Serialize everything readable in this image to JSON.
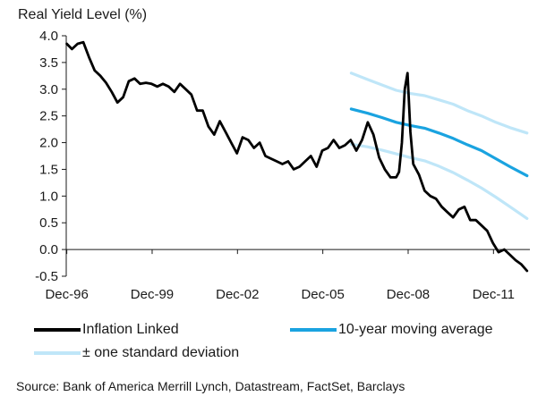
{
  "chart_data": {
    "type": "line",
    "title": "Real Yield Level (%)",
    "xlabel": "",
    "ylabel": "",
    "x_range": [
      1996.9,
      2013.2
    ],
    "ylim": [
      -0.5,
      4.0
    ],
    "y_ticks": [
      -0.5,
      0.0,
      0.5,
      1.0,
      1.5,
      2.0,
      2.5,
      3.0,
      3.5,
      4.0
    ],
    "y_tick_labels": [
      "-0.5",
      "0.0",
      "0.5",
      "1.0",
      "1.5",
      "2.0",
      "2.5",
      "3.0",
      "3.5",
      "4.0"
    ],
    "x_ticks": [
      1996.92,
      1999.92,
      2002.92,
      2005.92,
      2008.92,
      2011.92
    ],
    "x_tick_labels": [
      "Dec-96",
      "Dec-99",
      "Dec-02",
      "Dec-05",
      "Dec-08",
      "Dec-11"
    ],
    "grid": false,
    "legend_position": "bottom",
    "series": [
      {
        "name": "Inflation Linked",
        "color": "#000000",
        "x": [
          1996.92,
          1997.1,
          1997.3,
          1997.5,
          1997.7,
          1997.9,
          1998.1,
          1998.3,
          1998.5,
          1998.7,
          1998.9,
          1999.1,
          1999.3,
          1999.5,
          1999.7,
          1999.9,
          2000.1,
          2000.3,
          2000.5,
          2000.7,
          2000.9,
          2001.1,
          2001.3,
          2001.5,
          2001.7,
          2001.9,
          2002.1,
          2002.3,
          2002.5,
          2002.7,
          2002.9,
          2003.1,
          2003.3,
          2003.5,
          2003.7,
          2003.9,
          2004.1,
          2004.3,
          2004.5,
          2004.7,
          2004.9,
          2005.1,
          2005.3,
          2005.5,
          2005.7,
          2005.9,
          2006.1,
          2006.3,
          2006.5,
          2006.7,
          2006.9,
          2007.1,
          2007.3,
          2007.5,
          2007.7,
          2007.9,
          2008.1,
          2008.3,
          2008.5,
          2008.6,
          2008.7,
          2008.8,
          2008.9,
          2009.0,
          2009.1,
          2009.3,
          2009.5,
          2009.7,
          2009.9,
          2010.1,
          2010.3,
          2010.5,
          2010.7,
          2010.9,
          2011.1,
          2011.3,
          2011.5,
          2011.7,
          2011.9,
          2012.1,
          2012.3,
          2012.5,
          2012.7,
          2012.9,
          2013.1
        ],
        "values": [
          3.85,
          3.75,
          3.85,
          3.88,
          3.6,
          3.35,
          3.25,
          3.12,
          2.95,
          2.75,
          2.85,
          3.15,
          3.2,
          3.1,
          3.12,
          3.1,
          3.05,
          3.1,
          3.05,
          2.95,
          3.1,
          3.0,
          2.9,
          2.6,
          2.6,
          2.3,
          2.15,
          2.4,
          2.2,
          2.0,
          1.8,
          2.1,
          2.05,
          1.9,
          2.0,
          1.75,
          1.7,
          1.65,
          1.6,
          1.65,
          1.5,
          1.55,
          1.65,
          1.75,
          1.55,
          1.85,
          1.9,
          2.05,
          1.9,
          1.95,
          2.05,
          1.85,
          2.05,
          2.38,
          2.15,
          1.72,
          1.5,
          1.35,
          1.35,
          1.45,
          2.0,
          3.0,
          3.3,
          2.2,
          1.6,
          1.4,
          1.1,
          1.0,
          0.95,
          0.8,
          0.7,
          0.6,
          0.75,
          0.8,
          0.55,
          0.55,
          0.45,
          0.35,
          0.12,
          -0.05,
          0.0,
          -0.1,
          -0.2,
          -0.28,
          -0.4
        ]
      },
      {
        "name": "10-year moving average",
        "color": "#1aa3e0",
        "x": [
          2006.92,
          2007.5,
          2008.0,
          2008.5,
          2009.0,
          2009.5,
          2010.0,
          2010.5,
          2011.0,
          2011.5,
          2012.0,
          2012.5,
          2013.1
        ],
        "values": [
          2.63,
          2.55,
          2.47,
          2.38,
          2.32,
          2.27,
          2.18,
          2.08,
          1.96,
          1.85,
          1.7,
          1.55,
          1.38
        ]
      },
      {
        "name": "± one standard deviation",
        "color": "#bfe6f8",
        "x": [
          2006.92,
          2007.5,
          2008.0,
          2008.5,
          2009.0,
          2009.5,
          2010.0,
          2010.5,
          2011.0,
          2011.5,
          2012.0,
          2012.5,
          2013.1
        ],
        "values": [
          3.3,
          3.18,
          3.08,
          2.98,
          2.92,
          2.88,
          2.8,
          2.72,
          2.6,
          2.5,
          2.38,
          2.28,
          2.18
        ]
      },
      {
        "name": "",
        "color": "#bfe6f8",
        "x": [
          2006.92,
          2007.5,
          2008.0,
          2008.5,
          2009.0,
          2009.5,
          2010.0,
          2010.5,
          2011.0,
          2011.5,
          2012.0,
          2012.5,
          2013.1
        ],
        "values": [
          1.97,
          1.92,
          1.86,
          1.79,
          1.72,
          1.66,
          1.56,
          1.44,
          1.3,
          1.15,
          0.98,
          0.8,
          0.58
        ]
      }
    ],
    "source": "Source: Bank of America Merrill Lynch, Datastream, FactSet, Barclays"
  }
}
